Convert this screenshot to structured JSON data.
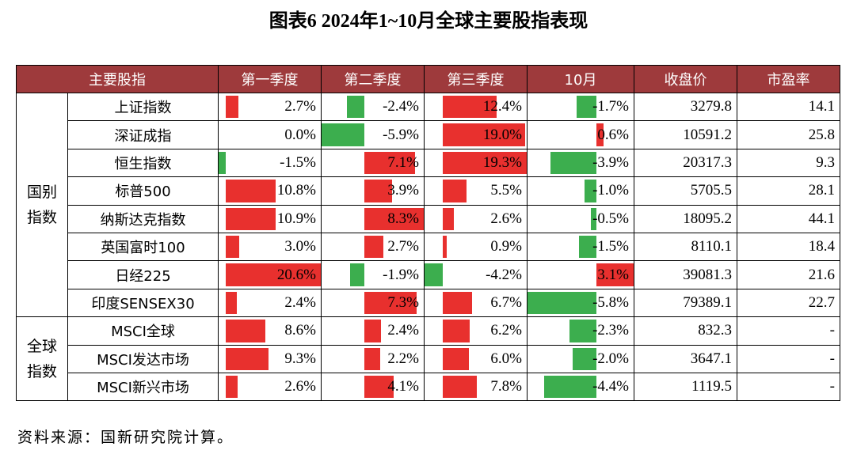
{
  "title": "图表6 2024年1~10月全球主要股指表现",
  "table": {
    "headers": [
      "主要股指",
      "第一季度",
      "第二季度",
      "第三季度",
      "10月",
      "收盘价",
      "市盈率"
    ],
    "groups": [
      {
        "label": "国别指数",
        "rows": [
          [
            "上证指数",
            "2.7%",
            "-2.4%",
            "12.4%",
            "-1.7%",
            "3279.8",
            "14.1"
          ],
          [
            "深证成指",
            "0.0%",
            "-5.9%",
            "19.0%",
            "0.6%",
            "10591.2",
            "25.8"
          ],
          [
            "恒生指数",
            "-1.5%",
            "7.1%",
            "19.3%",
            "-3.9%",
            "20317.3",
            "9.3"
          ],
          [
            "标普500",
            "10.8%",
            "3.9%",
            "5.5%",
            "-1.0%",
            "5705.5",
            "28.1"
          ],
          [
            "纳斯达克指数",
            "10.9%",
            "8.3%",
            "2.6%",
            "-0.5%",
            "18095.2",
            "44.1"
          ],
          [
            "英国富时100",
            "3.0%",
            "2.7%",
            "0.9%",
            "-1.5%",
            "8110.1",
            "18.4"
          ],
          [
            "日经225",
            "20.6%",
            "-1.9%",
            "-4.2%",
            "3.1%",
            "39081.3",
            "21.6"
          ],
          [
            "印度SENSEX30",
            "2.4%",
            "7.3%",
            "6.7%",
            "-5.8%",
            "79389.1",
            "22.7"
          ]
        ]
      },
      {
        "label": "全球指数",
        "rows": [
          [
            "MSCI全球",
            "8.6%",
            "2.4%",
            "6.2%",
            "-2.3%",
            "832.3",
            "-"
          ],
          [
            "MSCI发达市场",
            "9.3%",
            "2.2%",
            "6.0%",
            "-2.0%",
            "3647.1",
            "-"
          ],
          [
            "MSCI新兴市场",
            "2.6%",
            "4.1%",
            "7.8%",
            "-4.4%",
            "1119.5",
            "-"
          ]
        ]
      }
    ]
  },
  "source": "资料来源：国新研究院计算。"
}
